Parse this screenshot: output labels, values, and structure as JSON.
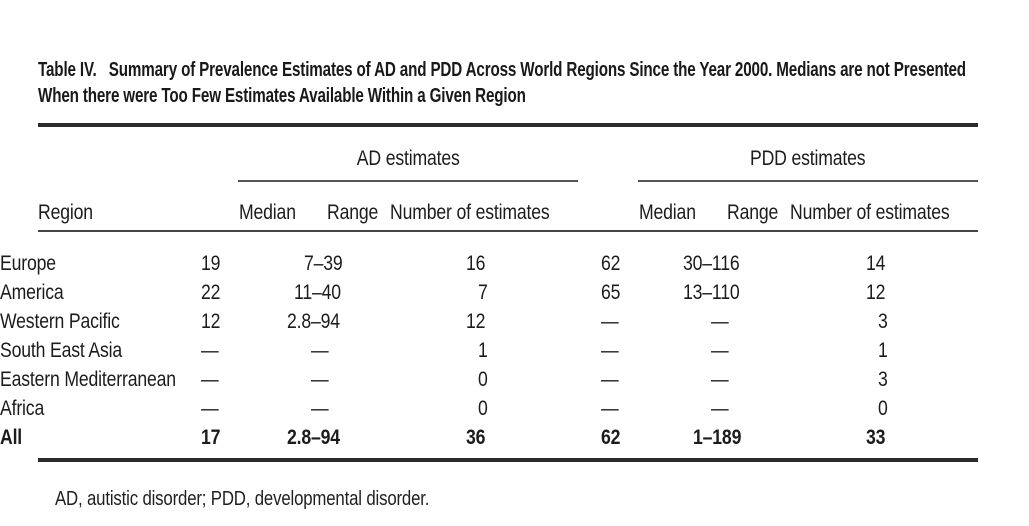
{
  "title": {
    "label": "Table IV.",
    "line1": "Summary of Prevalence Estimates of AD and PDD Across World Regions Since the Year 2000. Medians are not Presented",
    "line2": "When there were Too Few Estimates Available Within a Given Region"
  },
  "groups": {
    "ad": "AD estimates",
    "pdd": "PDD estimates"
  },
  "columns": {
    "region": "Region",
    "median": "Median",
    "range": "Range",
    "number": "Number of estimates"
  },
  "table": {
    "rows": [
      {
        "region": "Europe",
        "ad_median": "19",
        "ad_range": "7–39",
        "ad_n": "16",
        "pdd_median": "62",
        "pdd_range": "30–116",
        "pdd_n": "14"
      },
      {
        "region": "America",
        "ad_median": "22",
        "ad_range": "11–40",
        "ad_n": "7",
        "pdd_median": "65",
        "pdd_range": "13–110",
        "pdd_n": "12"
      },
      {
        "region": "Western Pacific",
        "ad_median": "12",
        "ad_range": "2.8–94",
        "ad_n": "12",
        "pdd_median": "—",
        "pdd_range": "—",
        "pdd_n": "3"
      },
      {
        "region": "South East Asia",
        "ad_median": "—",
        "ad_range": "—",
        "ad_n": "1",
        "pdd_median": "—",
        "pdd_range": "—",
        "pdd_n": "1"
      },
      {
        "region": "Eastern Mediterranean",
        "ad_median": "—",
        "ad_range": "—",
        "ad_n": "0",
        "pdd_median": "—",
        "pdd_range": "—",
        "pdd_n": "3"
      },
      {
        "region": "Africa",
        "ad_median": "—",
        "ad_range": "—",
        "ad_n": "0",
        "pdd_median": "—",
        "pdd_range": "—",
        "pdd_n": "0"
      },
      {
        "region": "All",
        "ad_median": "17",
        "ad_range": "2.8–94",
        "ad_n": "36",
        "pdd_median": "62",
        "pdd_range": "1–189",
        "pdd_n": "33"
      }
    ]
  },
  "footnote": "AD, autistic disorder; PDD, developmental disorder."
}
